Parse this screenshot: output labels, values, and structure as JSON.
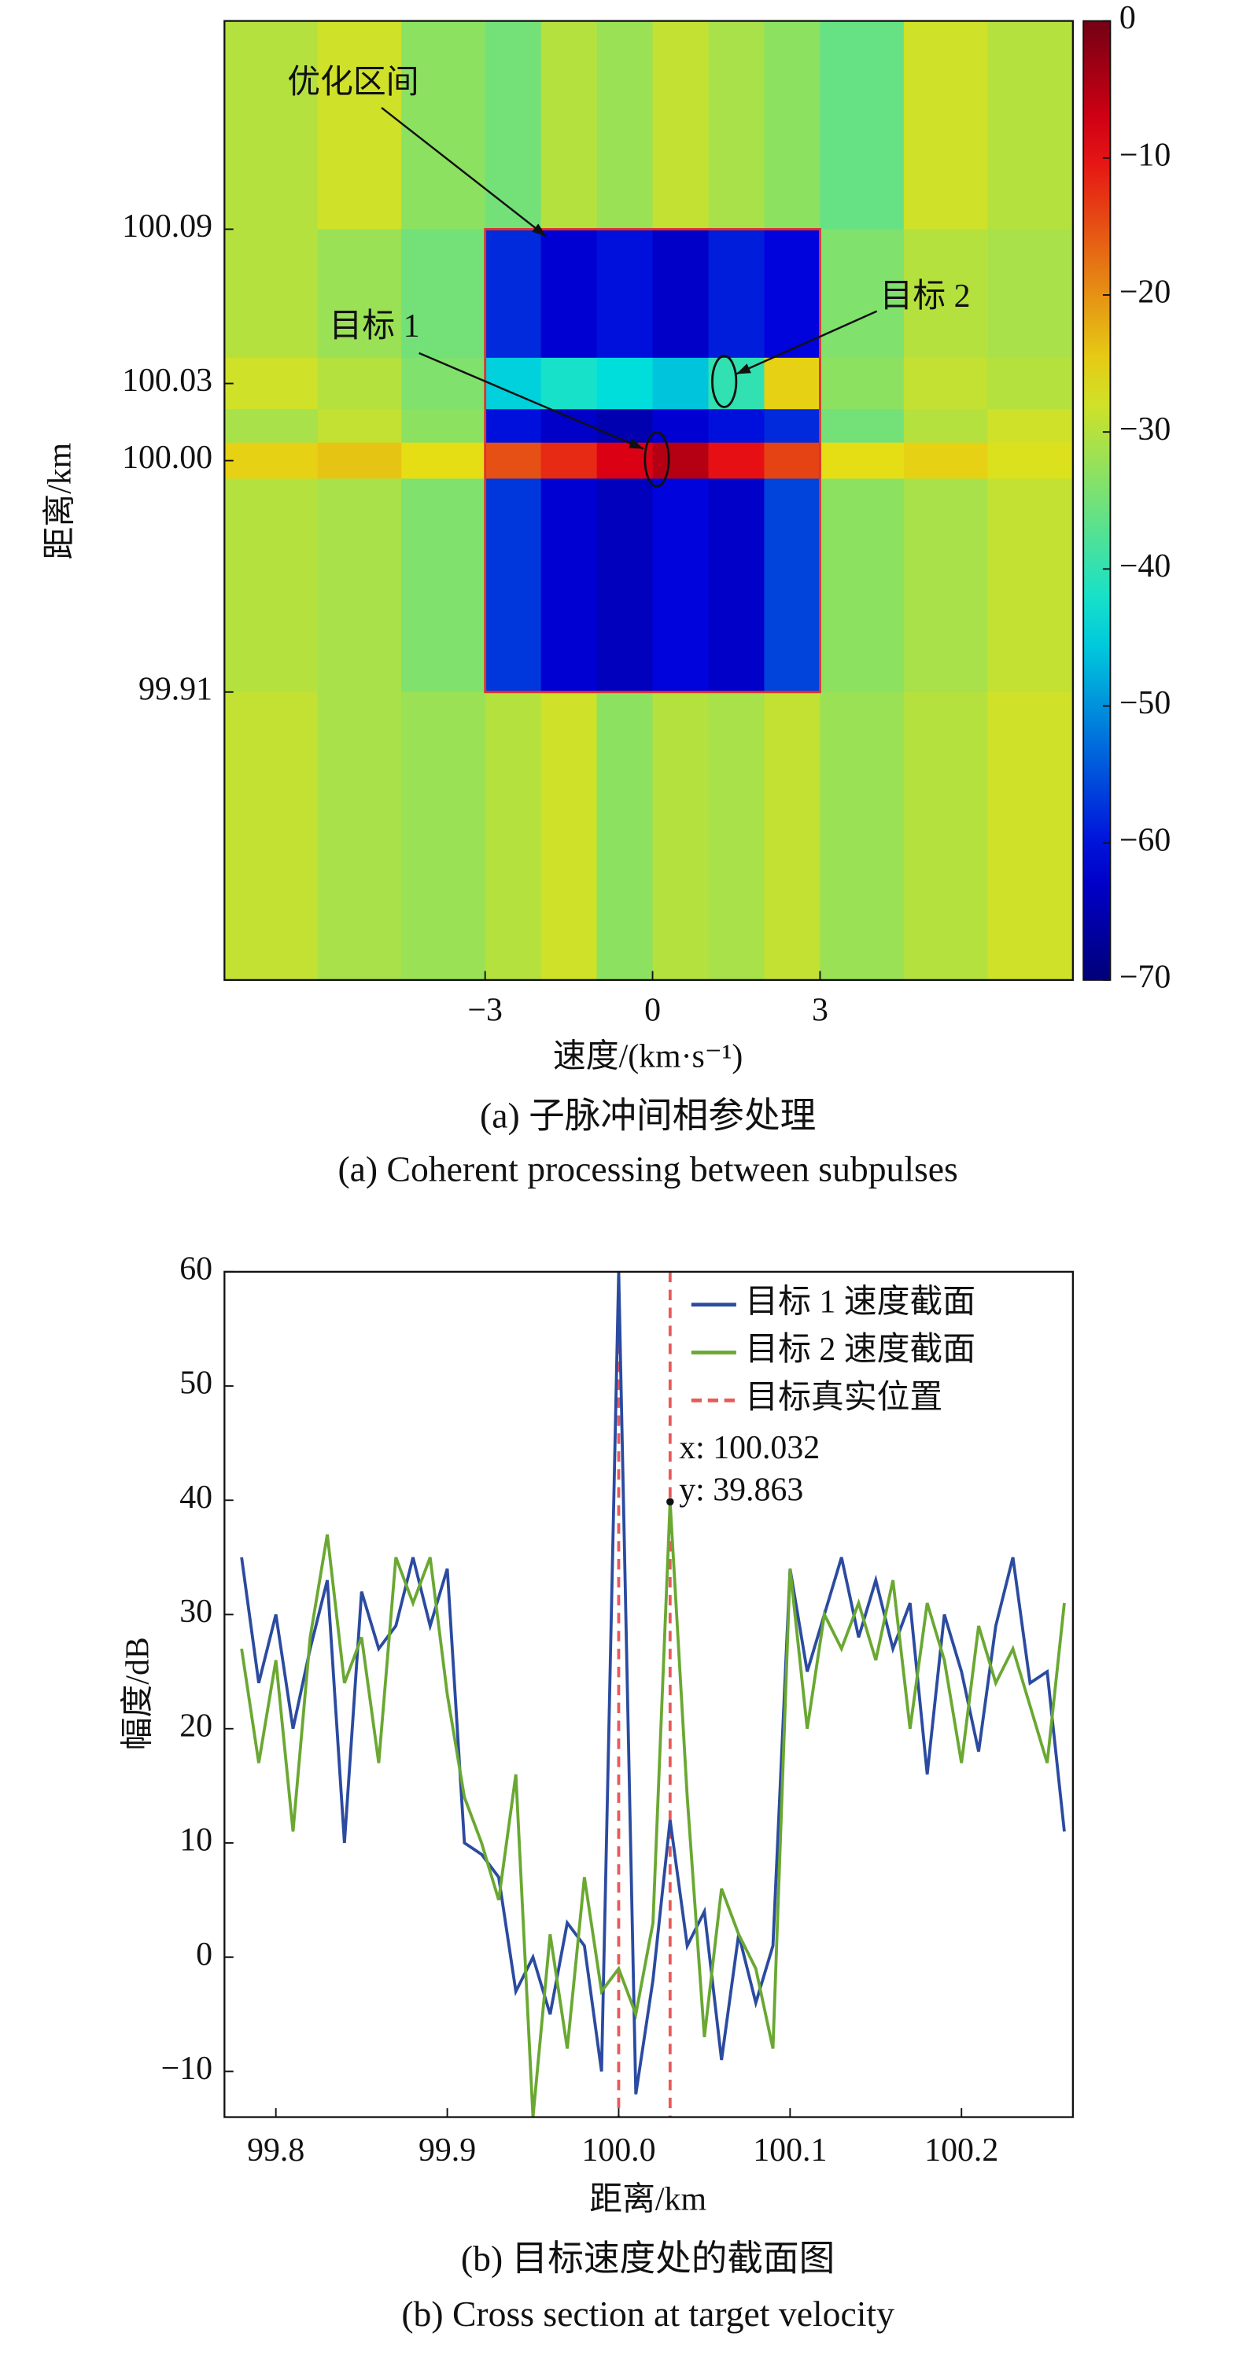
{
  "chart_data": [
    {
      "type": "heatmap",
      "xlabel": "速度/(km·s⁻¹)",
      "ylabel": "距离/km",
      "caption_cn": "(a) 子脉冲间相参处理",
      "caption_en": "(a) Coherent processing between subpulses",
      "xlim": [
        -7.67,
        7.53
      ],
      "ylim": [
        99.798,
        100.171
      ],
      "xticks": [
        {
          "value": -3,
          "label": "−3"
        },
        0,
        3
      ],
      "yticks": [
        {
          "value": 99.91,
          "label": "99.91"
        },
        {
          "value": 100.0,
          "label": "100.00"
        },
        {
          "value": 100.03,
          "label": "100.03"
        },
        {
          "value": 100.09,
          "label": "100.09"
        }
      ],
      "x_edges": [
        -7.67,
        -6,
        -4.5,
        -3,
        -2,
        -1,
        0,
        1,
        2,
        3,
        4.5,
        6,
        7.53
      ],
      "y_edges": [
        100.171,
        100.09,
        100.04,
        100.02,
        100.007,
        99.993,
        99.91,
        99.798
      ],
      "values": [
        [
          -30,
          -28,
          -33,
          -35,
          -30,
          -32,
          -29,
          -31,
          -33,
          -36,
          -28,
          -30
        ],
        [
          -30,
          -32,
          -35,
          -58,
          -62,
          -60,
          -63,
          -59,
          -61,
          -34,
          -30,
          -31
        ],
        [
          -28,
          -30,
          -34,
          -45,
          -42,
          -44,
          -46,
          -40,
          -25,
          -33,
          -29,
          -30
        ],
        [
          -31,
          -29,
          -33,
          -60,
          -63,
          -65,
          -62,
          -60,
          -58,
          -35,
          -30,
          -28
        ],
        [
          -25,
          -24,
          -26,
          -15,
          -12,
          -8,
          -5,
          -10,
          -14,
          -26,
          -25,
          -27
        ],
        [
          -30,
          -31,
          -34,
          -57,
          -62,
          -64,
          -61,
          -63,
          -56,
          -33,
          -31,
          -29
        ],
        [
          -29,
          -31,
          -32,
          -30,
          -28,
          -33,
          -30,
          -31,
          -29,
          -32,
          -30,
          -28
        ]
      ],
      "zlim": [
        -70,
        0
      ],
      "zticks": [
        0,
        {
          "value": -10,
          "label": "−10"
        },
        {
          "value": -20,
          "label": "−20"
        },
        {
          "value": -30,
          "label": "−30"
        },
        {
          "value": -40,
          "label": "−40"
        },
        {
          "value": -50,
          "label": "−50"
        },
        {
          "value": -60,
          "label": "−60"
        },
        {
          "value": -70,
          "label": "−70"
        }
      ],
      "box_color": "#e03030",
      "annotations": [
        "优化区间",
        "目标 1",
        "目标 2"
      ]
    },
    {
      "type": "line",
      "xlabel": "距离/km",
      "ylabel": "幅度/dB",
      "caption_cn": "(b) 目标速度处的截面图",
      "caption_en": "(b) Cross section at target velocity",
      "xlim": [
        99.77,
        100.265
      ],
      "ylim": [
        -14,
        60
      ],
      "xticks": [
        99.8,
        99.9,
        {
          "value": 100.0,
          "label": "100.0"
        },
        100.1,
        100.2
      ],
      "yticks": [
        {
          "value": -10,
          "label": "−10"
        },
        0,
        10,
        20,
        30,
        40,
        50,
        60
      ],
      "x": [
        99.78,
        99.79,
        99.8,
        99.81,
        99.82,
        99.83,
        99.84,
        99.85,
        99.86,
        99.87,
        99.88,
        99.89,
        99.9,
        99.91,
        99.92,
        99.93,
        99.94,
        99.95,
        99.96,
        99.97,
        99.98,
        99.99,
        100.0,
        100.01,
        100.02,
        100.03,
        100.04,
        100.05,
        100.06,
        100.07,
        100.08,
        100.09,
        100.1,
        100.11,
        100.12,
        100.13,
        100.14,
        100.15,
        100.16,
        100.17,
        100.18,
        100.19,
        100.2,
        100.21,
        100.22,
        100.23,
        100.24,
        100.25,
        100.26
      ],
      "series": [
        {
          "name": "目标 1 速度截面",
          "color": "#2b4ba0",
          "values": [
            35,
            24,
            30,
            20,
            27,
            33,
            10,
            32,
            27,
            29,
            35,
            29,
            34,
            10,
            9,
            7,
            -3,
            0,
            -5,
            3,
            1,
            -10,
            60,
            -12,
            -2,
            12,
            1,
            4,
            -9,
            2,
            -4,
            1,
            34,
            25,
            30,
            35,
            28,
            33,
            27,
            31,
            16,
            30,
            25,
            18,
            29,
            35,
            24,
            25,
            11
          ]
        },
        {
          "name": "目标 2 速度截面",
          "color": "#6aa832",
          "values": [
            27,
            17,
            26,
            11,
            28,
            37,
            24,
            28,
            17,
            35,
            31,
            35,
            23,
            14,
            10,
            5,
            16,
            -14,
            2,
            -8,
            7,
            -3,
            -1,
            -5,
            3,
            39.863,
            14,
            -7,
            6,
            2,
            -1,
            -8,
            34,
            20,
            30,
            27,
            31,
            26,
            33,
            20,
            31,
            26,
            17,
            29,
            24,
            27,
            22,
            17,
            31
          ]
        }
      ],
      "reference": {
        "name": "目标真实位置",
        "color": "#e85a5a",
        "x": [
          100.0,
          100.03
        ]
      },
      "annotation": {
        "lines": [
          "x: 100.032",
          "y: 39.863"
        ]
      },
      "legend": "upper right"
    }
  ]
}
